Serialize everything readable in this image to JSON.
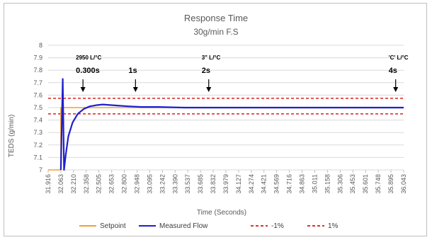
{
  "chart_data": {
    "type": "line",
    "title": "Response Time",
    "subtitle": "30g/min F.S",
    "xlabel": "Time (Seconds)",
    "ylabel": "TEDS (g/min)",
    "ylim": [
      7,
      8
    ],
    "yticks": [
      "7",
      "7.1",
      "7.2",
      "7.3",
      "7.4",
      "7.5",
      "7.6",
      "7.7",
      "7.8",
      "7.9",
      "8"
    ],
    "xlim": [
      31.916,
      36.043
    ],
    "xticks": [
      "31.916",
      "32.063",
      "32.210",
      "32.358",
      "32.505",
      "32.653",
      "32.800",
      "32.948",
      "33.095",
      "33.242",
      "33.390",
      "33.537",
      "33.685",
      "33.832",
      "33.979",
      "34.127",
      "34.274",
      "34.421",
      "34.569",
      "34.716",
      "34.863",
      "35.011",
      "35.158",
      "35.306",
      "35.453",
      "35.601",
      "35.748",
      "35.895",
      "36.043"
    ],
    "grid": "horizontal",
    "legend_position": "bottom",
    "series": [
      {
        "name": "Setpoint",
        "color": "#f0a030",
        "x": [
          31.916,
          32.063,
          32.063,
          32.26,
          36.043
        ],
        "y": [
          7.0,
          7.0,
          7.5,
          7.5,
          7.5
        ]
      },
      {
        "name": "Measured Flow",
        "color": "#1f1fcc",
        "x": [
          32.063,
          32.085,
          32.1,
          32.12,
          32.15,
          32.2,
          32.26,
          32.33,
          32.4,
          32.48,
          32.55,
          32.65,
          32.75,
          32.85,
          33.0,
          33.2,
          33.5,
          34.0,
          34.5,
          35.0,
          35.5,
          36.043
        ],
        "y": [
          7.0,
          7.73,
          7.0,
          7.12,
          7.27,
          7.38,
          7.45,
          7.49,
          7.51,
          7.52,
          7.525,
          7.52,
          7.515,
          7.51,
          7.505,
          7.505,
          7.5,
          7.5,
          7.5,
          7.5,
          7.5,
          7.5
        ]
      },
      {
        "name": "-1%",
        "color": "#e03030",
        "dashed": true,
        "x": [
          31.916,
          36.043
        ],
        "y": [
          7.45,
          7.45
        ]
      },
      {
        "name": "1%",
        "color": "#e03030",
        "dashed": true,
        "x": [
          31.916,
          36.043
        ],
        "y": [
          7.575,
          7.575
        ]
      }
    ],
    "annotations": [
      {
        "x": 32.32,
        "top": "2950 L/°C",
        "bottom": "0.300s"
      },
      {
        "x": 32.93,
        "top": "",
        "bottom": "1s"
      },
      {
        "x": 33.78,
        "top": "3\" L/°C",
        "bottom": "2s"
      },
      {
        "x": 35.95,
        "top": "'C' L/°C",
        "bottom": "4s"
      }
    ]
  }
}
